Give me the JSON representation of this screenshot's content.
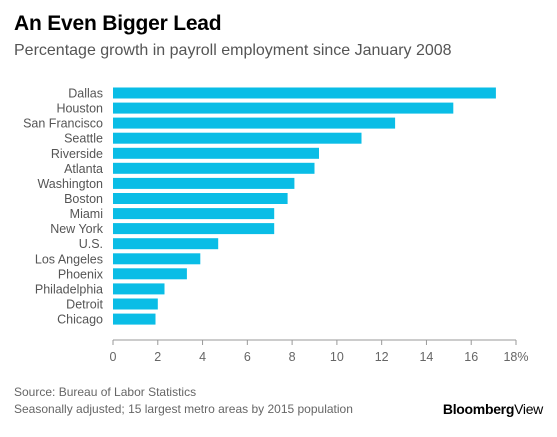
{
  "header": {
    "title": "An Even Bigger Lead",
    "subtitle": "Percentage growth in payroll employment since January 2008"
  },
  "footer": {
    "source": "Source: Bureau of Labor Statistics",
    "note": "Seasonally adjusted; 15 largest metro areas by 2015 population",
    "brand_bold": "Bloomberg",
    "brand_light": "View"
  },
  "colors": {
    "bar": "#0ABDE6",
    "axis": "#999999",
    "tick_text": "#666666",
    "category_text": "#555555"
  },
  "chart_data": {
    "type": "bar",
    "orientation": "horizontal",
    "categories": [
      "Dallas",
      "Houston",
      "San Francisco",
      "Seattle",
      "Riverside",
      "Atlanta",
      "Washington",
      "Boston",
      "Miami",
      "New York",
      "U.S.",
      "Los Angeles",
      "Phoenix",
      "Philadelphia",
      "Detroit",
      "Chicago"
    ],
    "values": [
      17.1,
      15.2,
      12.6,
      11.1,
      9.2,
      9.0,
      8.1,
      7.8,
      7.2,
      7.2,
      4.7,
      3.9,
      3.3,
      2.3,
      2.0,
      1.9
    ],
    "xlim": [
      0,
      18
    ],
    "xticks": [
      0,
      2,
      4,
      6,
      8,
      10,
      12,
      14,
      16,
      18
    ],
    "xtick_labels": [
      "0",
      "2",
      "4",
      "6",
      "8",
      "10",
      "12",
      "14",
      "16",
      "18%"
    ],
    "grid": false,
    "title": "An Even Bigger Lead",
    "subtitle": "Percentage growth in payroll employment since January 2008",
    "xlabel": "",
    "ylabel": ""
  }
}
